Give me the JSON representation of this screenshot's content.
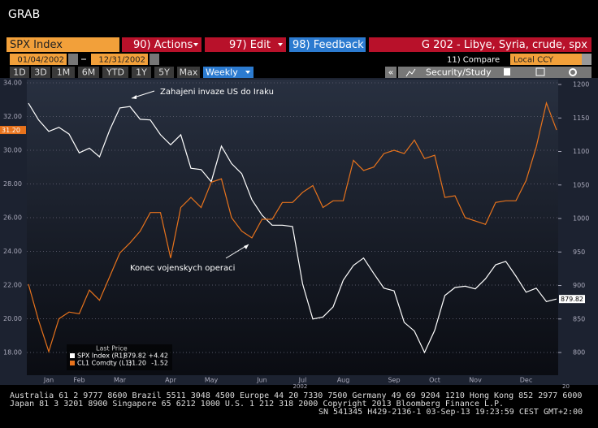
{
  "header": {
    "title": "GRAB"
  },
  "toolbar": {
    "security": "SPX Index",
    "actions": "90) Actions",
    "edit": "97) Edit",
    "feedback": "98) Feedback",
    "page_title": "G 202 - Libye, Syria, crude, spx"
  },
  "date_range": {
    "start": "01/04/2002",
    "end": "12/31/2002",
    "compare": "11) Compare",
    "currency": "Local CCY"
  },
  "periods": [
    "1D",
    "3D",
    "1M",
    "6M",
    "YTD",
    "1Y",
    "5Y",
    "Max"
  ],
  "frequency": "Weekly",
  "nav": "«",
  "study": "Security/Study",
  "footer": [
    "Australia 61 2 9777 8600 Brazil 5511 3048 4500 Europe 44 20 7330 7500 Germany 49 69 9204 1210 Hong Kong 852 2977 6000",
    "Japan 81 3 3201 8900        Singapore 65 6212 1000        U.S. 1 212 318 2000        Copyright 2013 Bloomberg Finance L.P.",
    "SN 541345 H429-2136-1 03-Sep-13 19:23:59 CEST GMT+2:00"
  ],
  "chart_data": {
    "type": "line",
    "categories": [
      null,
      null,
      "Jan",
      null,
      null,
      "Feb",
      null,
      null,
      null,
      "Mar",
      null,
      null,
      null,
      null,
      "Apr",
      null,
      null,
      null,
      "May",
      null,
      null,
      null,
      null,
      "Jun",
      null,
      null,
      null,
      "Jul",
      null,
      null,
      null,
      "Aug",
      null,
      null,
      null,
      null,
      "Sep",
      null,
      null,
      null,
      "Oct",
      null,
      null,
      null,
      "Nov",
      null,
      null,
      null,
      null,
      "Dec",
      null,
      null,
      null
    ],
    "year_label": "2002",
    "next_year_label": "20",
    "legend_title": "Last Price",
    "series": [
      {
        "name": "SPX Index (R1)",
        "color": "#ffffff",
        "axis": "y2",
        "last": 879.82,
        "change": {
          "value": 4.42,
          "label": "+4.42"
        },
        "values": [
          1172,
          1147,
          1130,
          1136,
          1126,
          1098,
          1105,
          1092,
          1132,
          1165,
          1167,
          1148,
          1147,
          1125,
          1110,
          1125,
          1075,
          1073,
          1055,
          1108,
          1082,
          1067,
          1028,
          1005,
          990,
          990,
          988,
          902,
          850,
          853,
          868,
          908,
          930,
          941,
          918,
          896,
          892,
          845,
          832,
          800,
          833,
          885,
          897,
          899,
          895,
          910,
          931,
          936,
          914,
          890,
          896,
          876,
          879.82
        ]
      },
      {
        "name": "CL1 Comdty (L1)",
        "color": "#e8731c",
        "axis": "y",
        "last": {
          "value": 31.2,
          "label": "31.20"
        },
        "change": -1.52,
        "values": [
          22.05,
          19.9,
          18.05,
          20.0,
          20.4,
          20.3,
          21.7,
          21.1,
          22.5,
          23.9,
          24.5,
          25.2,
          26.3,
          26.3,
          23.6,
          26.6,
          27.2,
          26.6,
          28.1,
          28.3,
          26.0,
          25.2,
          24.8,
          25.9,
          25.9,
          26.9,
          26.9,
          27.5,
          27.9,
          26.6,
          27.0,
          27.0,
          29.4,
          28.8,
          29.0,
          29.8,
          30.0,
          29.8,
          30.6,
          29.5,
          29.7,
          27.2,
          27.3,
          26.0,
          25.8,
          25.6,
          26.9,
          27.0,
          27.0,
          28.2,
          30.2,
          32.8,
          31.2
        ]
      }
    ],
    "ylim": [
      16.65,
      34.19
    ],
    "yticks": [
      {
        "value": 34,
        "label": "34.00"
      },
      {
        "value": 32,
        "label": "32.00"
      },
      {
        "value": 30,
        "label": "30.00"
      },
      {
        "value": 28,
        "label": "28.00"
      },
      {
        "value": 26,
        "label": "26.00"
      },
      {
        "value": 24,
        "label": "24.00"
      },
      {
        "value": 22,
        "label": "22.00"
      },
      {
        "value": 20,
        "label": "20.00"
      },
      {
        "value": 18,
        "label": "18.00"
      }
    ],
    "y2lim": [
      766.1,
      1207.3
    ],
    "y2ticks": [
      1200,
      1150,
      1100,
      1050,
      1000,
      950,
      900,
      850,
      800
    ],
    "grid": true,
    "annotations": [
      {
        "text": "Zahajeni invaze US do Iraku"
      },
      {
        "text": "Konec vojenskych operaci"
      }
    ]
  }
}
